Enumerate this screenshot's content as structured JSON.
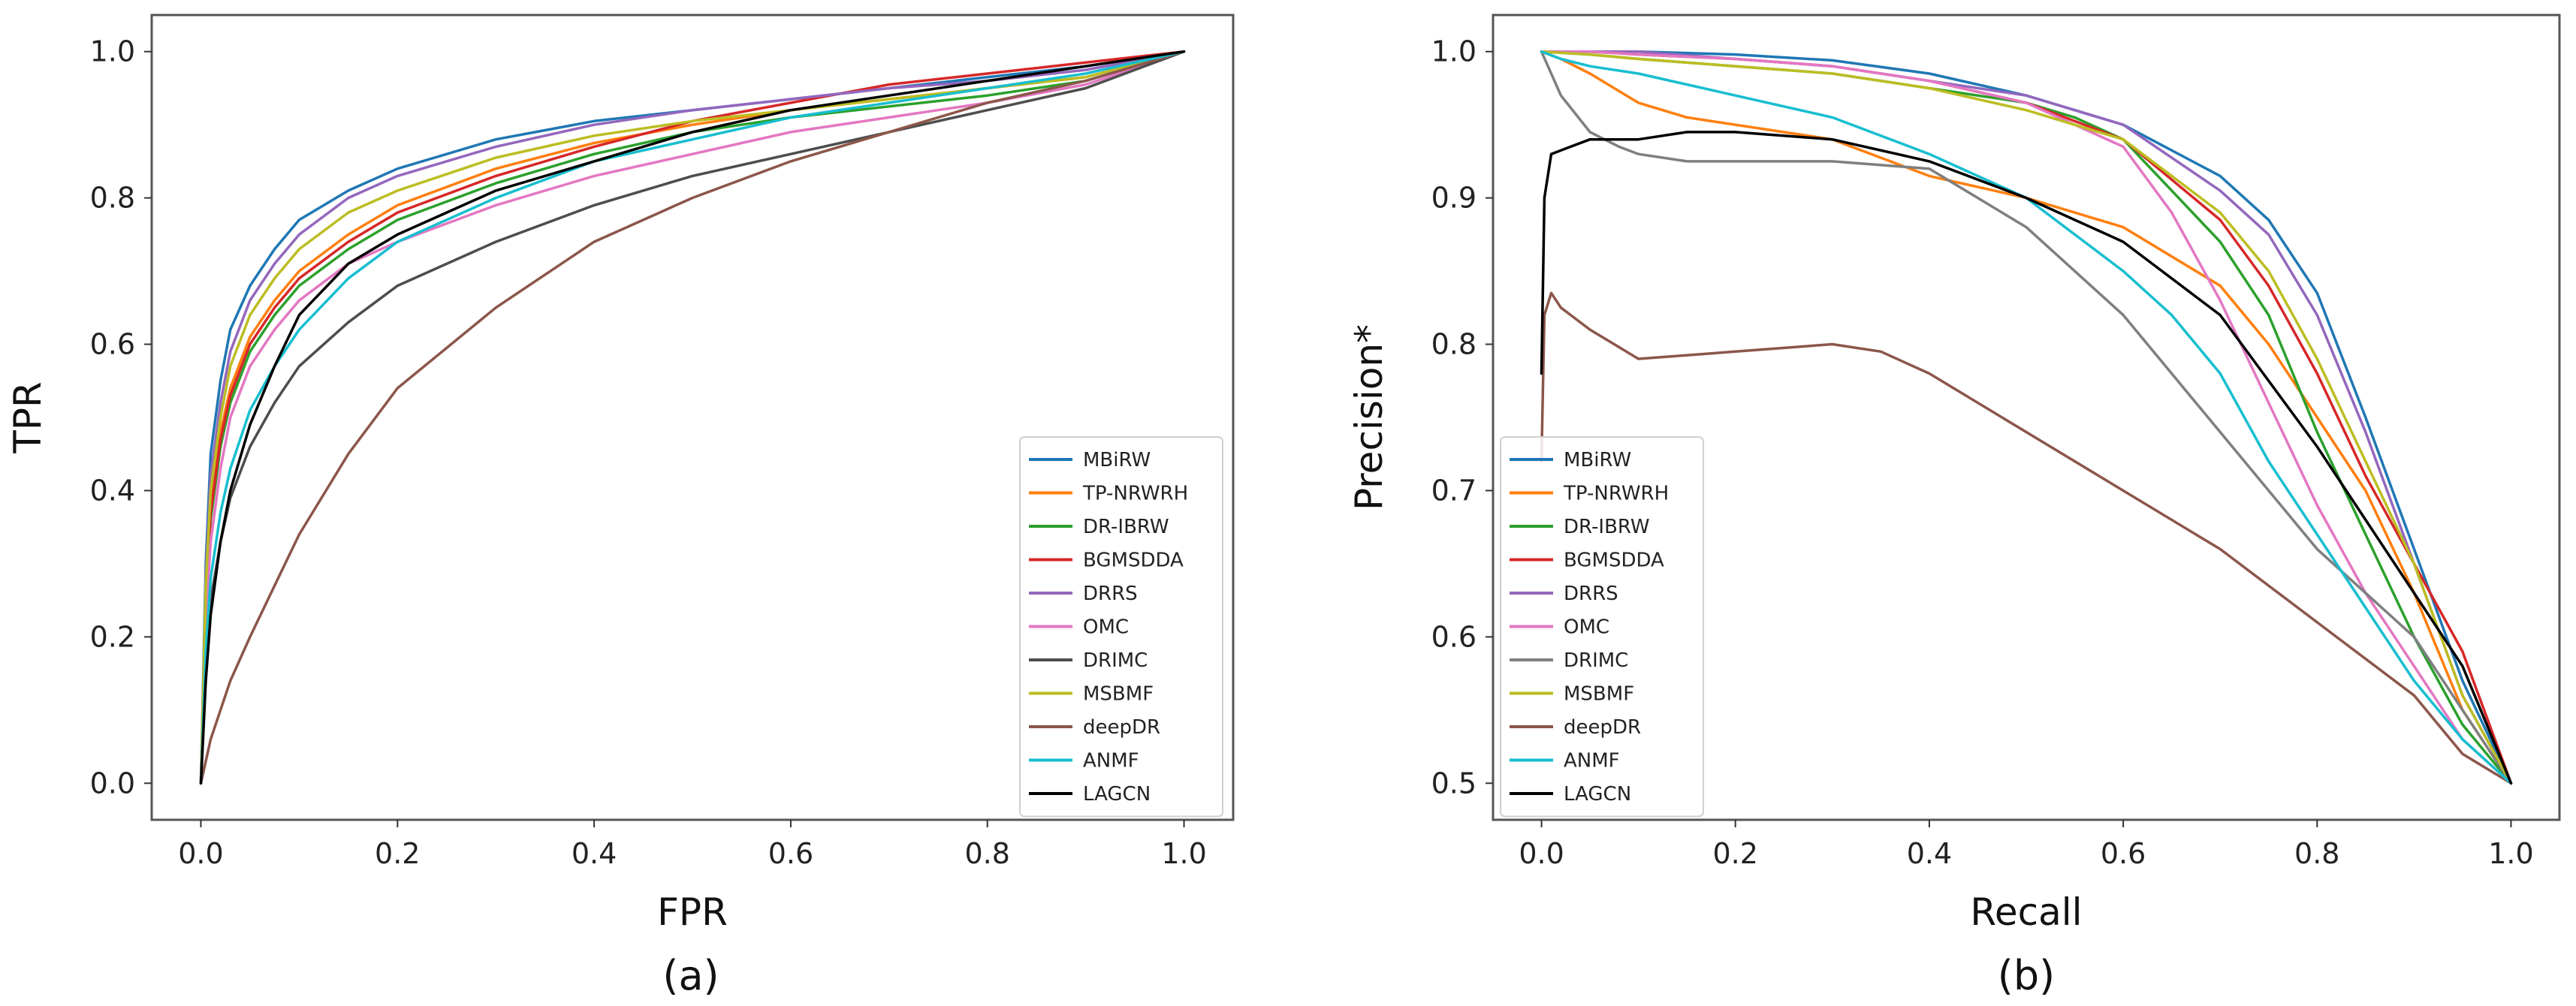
{
  "chart_data": [
    {
      "type": "line",
      "caption": "(a)",
      "xlabel": "FPR",
      "ylabel": "TPR",
      "xlim": [
        -0.05,
        1.05
      ],
      "ylim": [
        -0.05,
        1.05
      ],
      "xticks": [
        "0.0",
        "0.2",
        "0.4",
        "0.6",
        "0.8",
        "1.0"
      ],
      "yticks": [
        "0.0",
        "0.2",
        "0.4",
        "0.6",
        "0.8",
        "1.0"
      ],
      "legend_position": "lower right",
      "series": [
        {
          "name": "MBiRW",
          "color": "#1f77b4",
          "x": [
            0,
            0.005,
            0.01,
            0.02,
            0.03,
            0.05,
            0.075,
            0.1,
            0.15,
            0.2,
            0.3,
            0.4,
            0.5,
            0.6,
            0.7,
            0.8,
            0.9,
            1.0
          ],
          "y": [
            0,
            0.3,
            0.45,
            0.55,
            0.62,
            0.68,
            0.73,
            0.77,
            0.81,
            0.84,
            0.88,
            0.905,
            0.92,
            0.935,
            0.95,
            0.965,
            0.98,
            1.0
          ]
        },
        {
          "name": "TP-NRWRH",
          "color": "#ff7f0e",
          "x": [
            0,
            0.005,
            0.01,
            0.02,
            0.03,
            0.05,
            0.075,
            0.1,
            0.15,
            0.2,
            0.3,
            0.4,
            0.5,
            0.6,
            0.7,
            0.8,
            0.9,
            1.0
          ],
          "y": [
            0,
            0.25,
            0.38,
            0.48,
            0.54,
            0.61,
            0.66,
            0.7,
            0.75,
            0.79,
            0.84,
            0.875,
            0.9,
            0.92,
            0.935,
            0.95,
            0.965,
            1.0
          ]
        },
        {
          "name": "DR-IBRW",
          "color": "#2ca02c",
          "x": [
            0,
            0.005,
            0.01,
            0.02,
            0.03,
            0.05,
            0.075,
            0.1,
            0.15,
            0.2,
            0.3,
            0.4,
            0.5,
            0.6,
            0.7,
            0.8,
            0.9,
            1.0
          ],
          "y": [
            0,
            0.24,
            0.36,
            0.46,
            0.52,
            0.59,
            0.64,
            0.68,
            0.73,
            0.77,
            0.82,
            0.86,
            0.89,
            0.91,
            0.925,
            0.94,
            0.96,
            1.0
          ]
        },
        {
          "name": "BGMSDDA",
          "color": "#d62728",
          "x": [
            0,
            0.005,
            0.01,
            0.02,
            0.03,
            0.05,
            0.075,
            0.1,
            0.15,
            0.2,
            0.3,
            0.4,
            0.5,
            0.6,
            0.7,
            0.8,
            0.9,
            1.0
          ],
          "y": [
            0,
            0.24,
            0.37,
            0.47,
            0.53,
            0.6,
            0.65,
            0.69,
            0.74,
            0.78,
            0.83,
            0.87,
            0.905,
            0.93,
            0.955,
            0.97,
            0.985,
            1.0
          ]
        },
        {
          "name": "DRRS",
          "color": "#9467bd",
          "x": [
            0,
            0.005,
            0.01,
            0.02,
            0.03,
            0.05,
            0.075,
            0.1,
            0.15,
            0.2,
            0.3,
            0.4,
            0.5,
            0.6,
            0.7,
            0.8,
            0.9,
            1.0
          ],
          "y": [
            0,
            0.28,
            0.42,
            0.52,
            0.59,
            0.66,
            0.71,
            0.75,
            0.8,
            0.83,
            0.87,
            0.9,
            0.92,
            0.935,
            0.95,
            0.96,
            0.975,
            1.0
          ]
        },
        {
          "name": "OMC",
          "color": "#e377c2",
          "x": [
            0,
            0.005,
            0.01,
            0.02,
            0.03,
            0.05,
            0.075,
            0.1,
            0.15,
            0.2,
            0.3,
            0.4,
            0.5,
            0.6,
            0.7,
            0.8,
            0.9,
            1.0
          ],
          "y": [
            0,
            0.22,
            0.33,
            0.43,
            0.5,
            0.57,
            0.62,
            0.66,
            0.71,
            0.74,
            0.79,
            0.83,
            0.86,
            0.89,
            0.91,
            0.93,
            0.955,
            1.0
          ]
        },
        {
          "name": "DRIMC",
          "color": "#4d4d4d",
          "x": [
            0,
            0.005,
            0.01,
            0.02,
            0.03,
            0.05,
            0.075,
            0.1,
            0.15,
            0.2,
            0.3,
            0.4,
            0.5,
            0.6,
            0.7,
            0.8,
            0.9,
            1.0
          ],
          "y": [
            0,
            0.15,
            0.25,
            0.33,
            0.39,
            0.46,
            0.52,
            0.57,
            0.63,
            0.68,
            0.74,
            0.79,
            0.83,
            0.86,
            0.89,
            0.92,
            0.95,
            1.0
          ]
        },
        {
          "name": "MSBMF",
          "color": "#bcbd22",
          "x": [
            0,
            0.005,
            0.01,
            0.02,
            0.03,
            0.05,
            0.075,
            0.1,
            0.15,
            0.2,
            0.3,
            0.4,
            0.5,
            0.6,
            0.7,
            0.8,
            0.9,
            1.0
          ],
          "y": [
            0,
            0.27,
            0.4,
            0.5,
            0.57,
            0.64,
            0.69,
            0.73,
            0.78,
            0.81,
            0.855,
            0.885,
            0.905,
            0.92,
            0.935,
            0.95,
            0.965,
            1.0
          ]
        },
        {
          "name": "deepDR",
          "color": "#8c564b",
          "x": [
            0,
            0.005,
            0.01,
            0.02,
            0.03,
            0.05,
            0.075,
            0.1,
            0.15,
            0.2,
            0.3,
            0.4,
            0.5,
            0.6,
            0.7,
            0.8,
            0.9,
            1.0
          ],
          "y": [
            0,
            0.03,
            0.06,
            0.1,
            0.14,
            0.2,
            0.27,
            0.34,
            0.45,
            0.54,
            0.65,
            0.74,
            0.8,
            0.85,
            0.89,
            0.93,
            0.96,
            1.0
          ]
        },
        {
          "name": "ANMF",
          "color": "#17becf",
          "x": [
            0,
            0.005,
            0.01,
            0.02,
            0.03,
            0.05,
            0.075,
            0.1,
            0.15,
            0.2,
            0.3,
            0.4,
            0.5,
            0.6,
            0.7,
            0.8,
            0.9,
            1.0
          ],
          "y": [
            0,
            0.18,
            0.28,
            0.37,
            0.43,
            0.51,
            0.57,
            0.62,
            0.69,
            0.74,
            0.8,
            0.85,
            0.88,
            0.91,
            0.93,
            0.95,
            0.97,
            1.0
          ]
        },
        {
          "name": "LAGCN",
          "color": "#000000",
          "x": [
            0,
            0.005,
            0.01,
            0.02,
            0.03,
            0.05,
            0.075,
            0.1,
            0.15,
            0.2,
            0.3,
            0.4,
            0.5,
            0.6,
            0.7,
            0.8,
            0.9,
            1.0
          ],
          "y": [
            0,
            0.14,
            0.23,
            0.33,
            0.4,
            0.49,
            0.57,
            0.64,
            0.71,
            0.75,
            0.81,
            0.85,
            0.89,
            0.92,
            0.94,
            0.96,
            0.98,
            1.0
          ]
        }
      ]
    },
    {
      "type": "line",
      "caption": "(b)",
      "xlabel": "Recall",
      "ylabel": "Precision*",
      "xlim": [
        -0.05,
        1.05
      ],
      "ylim": [
        0.475,
        1.025
      ],
      "xticks": [
        "0.0",
        "0.2",
        "0.4",
        "0.6",
        "0.8",
        "1.0"
      ],
      "yticks": [
        "0.5",
        "0.6",
        "0.7",
        "0.8",
        "0.9",
        "1.0"
      ],
      "legend_position": "lower left",
      "series": [
        {
          "name": "MBiRW",
          "color": "#1f77b4",
          "x": [
            0,
            0.05,
            0.1,
            0.2,
            0.3,
            0.4,
            0.5,
            0.6,
            0.7,
            0.75,
            0.8,
            0.85,
            0.9,
            0.95,
            1.0
          ],
          "y": [
            1.0,
            1.0,
            1.0,
            0.998,
            0.994,
            0.985,
            0.97,
            0.95,
            0.915,
            0.885,
            0.835,
            0.75,
            0.66,
            0.57,
            0.5
          ]
        },
        {
          "name": "TP-NRWRH",
          "color": "#ff7f0e",
          "x": [
            0,
            0.02,
            0.05,
            0.1,
            0.15,
            0.2,
            0.3,
            0.4,
            0.5,
            0.6,
            0.7,
            0.75,
            0.8,
            0.85,
            0.9,
            0.95,
            1.0
          ],
          "y": [
            1.0,
            0.995,
            0.985,
            0.965,
            0.955,
            0.95,
            0.94,
            0.915,
            0.9,
            0.88,
            0.84,
            0.8,
            0.75,
            0.7,
            0.63,
            0.55,
            0.5
          ]
        },
        {
          "name": "DR-IBRW",
          "color": "#2ca02c",
          "x": [
            0,
            0.05,
            0.1,
            0.2,
            0.3,
            0.4,
            0.5,
            0.55,
            0.6,
            0.7,
            0.75,
            0.8,
            0.85,
            0.9,
            0.95,
            1.0
          ],
          "y": [
            1.0,
            0.998,
            0.995,
            0.99,
            0.985,
            0.975,
            0.965,
            0.955,
            0.94,
            0.87,
            0.82,
            0.74,
            0.67,
            0.6,
            0.54,
            0.5
          ]
        },
        {
          "name": "BGMSDDA",
          "color": "#d62728",
          "x": [
            0,
            0.05,
            0.1,
            0.2,
            0.3,
            0.4,
            0.5,
            0.6,
            0.7,
            0.75,
            0.8,
            0.85,
            0.9,
            0.95,
            1.0
          ],
          "y": [
            1.0,
            1.0,
            0.998,
            0.995,
            0.99,
            0.98,
            0.965,
            0.94,
            0.885,
            0.84,
            0.78,
            0.71,
            0.65,
            0.59,
            0.5
          ]
        },
        {
          "name": "DRRS",
          "color": "#9467bd",
          "x": [
            0,
            0.05,
            0.1,
            0.2,
            0.3,
            0.4,
            0.5,
            0.6,
            0.7,
            0.75,
            0.8,
            0.85,
            0.9,
            0.95,
            1.0
          ],
          "y": [
            1.0,
            1.0,
            1.0,
            0.995,
            0.99,
            0.98,
            0.97,
            0.95,
            0.905,
            0.875,
            0.82,
            0.74,
            0.65,
            0.56,
            0.5
          ]
        },
        {
          "name": "OMC",
          "color": "#e377c2",
          "x": [
            0,
            0.05,
            0.1,
            0.2,
            0.3,
            0.4,
            0.5,
            0.6,
            0.65,
            0.7,
            0.75,
            0.8,
            0.85,
            0.9,
            0.95,
            1.0
          ],
          "y": [
            1.0,
            1.0,
            0.998,
            0.995,
            0.99,
            0.98,
            0.965,
            0.935,
            0.89,
            0.83,
            0.76,
            0.69,
            0.63,
            0.58,
            0.53,
            0.5
          ]
        },
        {
          "name": "DRIMC",
          "color": "#7f7f7f",
          "x": [
            0,
            0.02,
            0.05,
            0.08,
            0.1,
            0.15,
            0.2,
            0.3,
            0.4,
            0.5,
            0.6,
            0.7,
            0.8,
            0.9,
            0.95,
            1.0
          ],
          "y": [
            1.0,
            0.97,
            0.945,
            0.935,
            0.93,
            0.925,
            0.925,
            0.925,
            0.92,
            0.88,
            0.82,
            0.74,
            0.66,
            0.6,
            0.55,
            0.5
          ]
        },
        {
          "name": "MSBMF",
          "color": "#bcbd22",
          "x": [
            0,
            0.05,
            0.1,
            0.2,
            0.3,
            0.4,
            0.5,
            0.6,
            0.7,
            0.75,
            0.8,
            0.85,
            0.9,
            0.95,
            1.0
          ],
          "y": [
            1.0,
            0.998,
            0.995,
            0.99,
            0.985,
            0.975,
            0.96,
            0.94,
            0.89,
            0.85,
            0.79,
            0.72,
            0.65,
            0.56,
            0.5
          ]
        },
        {
          "name": "deepDR",
          "color": "#8c564b",
          "x": [
            0,
            0.003,
            0.01,
            0.02,
            0.05,
            0.1,
            0.2,
            0.3,
            0.35,
            0.4,
            0.5,
            0.6,
            0.7,
            0.8,
            0.9,
            0.95,
            1.0
          ],
          "y": [
            0.72,
            0.82,
            0.835,
            0.825,
            0.81,
            0.79,
            0.795,
            0.8,
            0.795,
            0.78,
            0.74,
            0.7,
            0.66,
            0.61,
            0.56,
            0.52,
            0.5
          ]
        },
        {
          "name": "ANMF",
          "color": "#17becf",
          "x": [
            0,
            0.02,
            0.05,
            0.1,
            0.2,
            0.3,
            0.4,
            0.5,
            0.6,
            0.65,
            0.7,
            0.75,
            0.8,
            0.85,
            0.9,
            0.95,
            1.0
          ],
          "y": [
            1.0,
            0.995,
            0.99,
            0.985,
            0.97,
            0.955,
            0.93,
            0.9,
            0.85,
            0.82,
            0.78,
            0.72,
            0.67,
            0.62,
            0.57,
            0.53,
            0.5
          ]
        },
        {
          "name": "LAGCN",
          "color": "#000000",
          "x": [
            0,
            0.003,
            0.01,
            0.03,
            0.05,
            0.1,
            0.15,
            0.2,
            0.3,
            0.4,
            0.5,
            0.6,
            0.7,
            0.8,
            0.85,
            0.9,
            0.95,
            1.0
          ],
          "y": [
            0.78,
            0.9,
            0.93,
            0.935,
            0.94,
            0.94,
            0.945,
            0.945,
            0.94,
            0.925,
            0.9,
            0.87,
            0.82,
            0.73,
            0.68,
            0.63,
            0.58,
            0.5
          ]
        }
      ]
    }
  ]
}
